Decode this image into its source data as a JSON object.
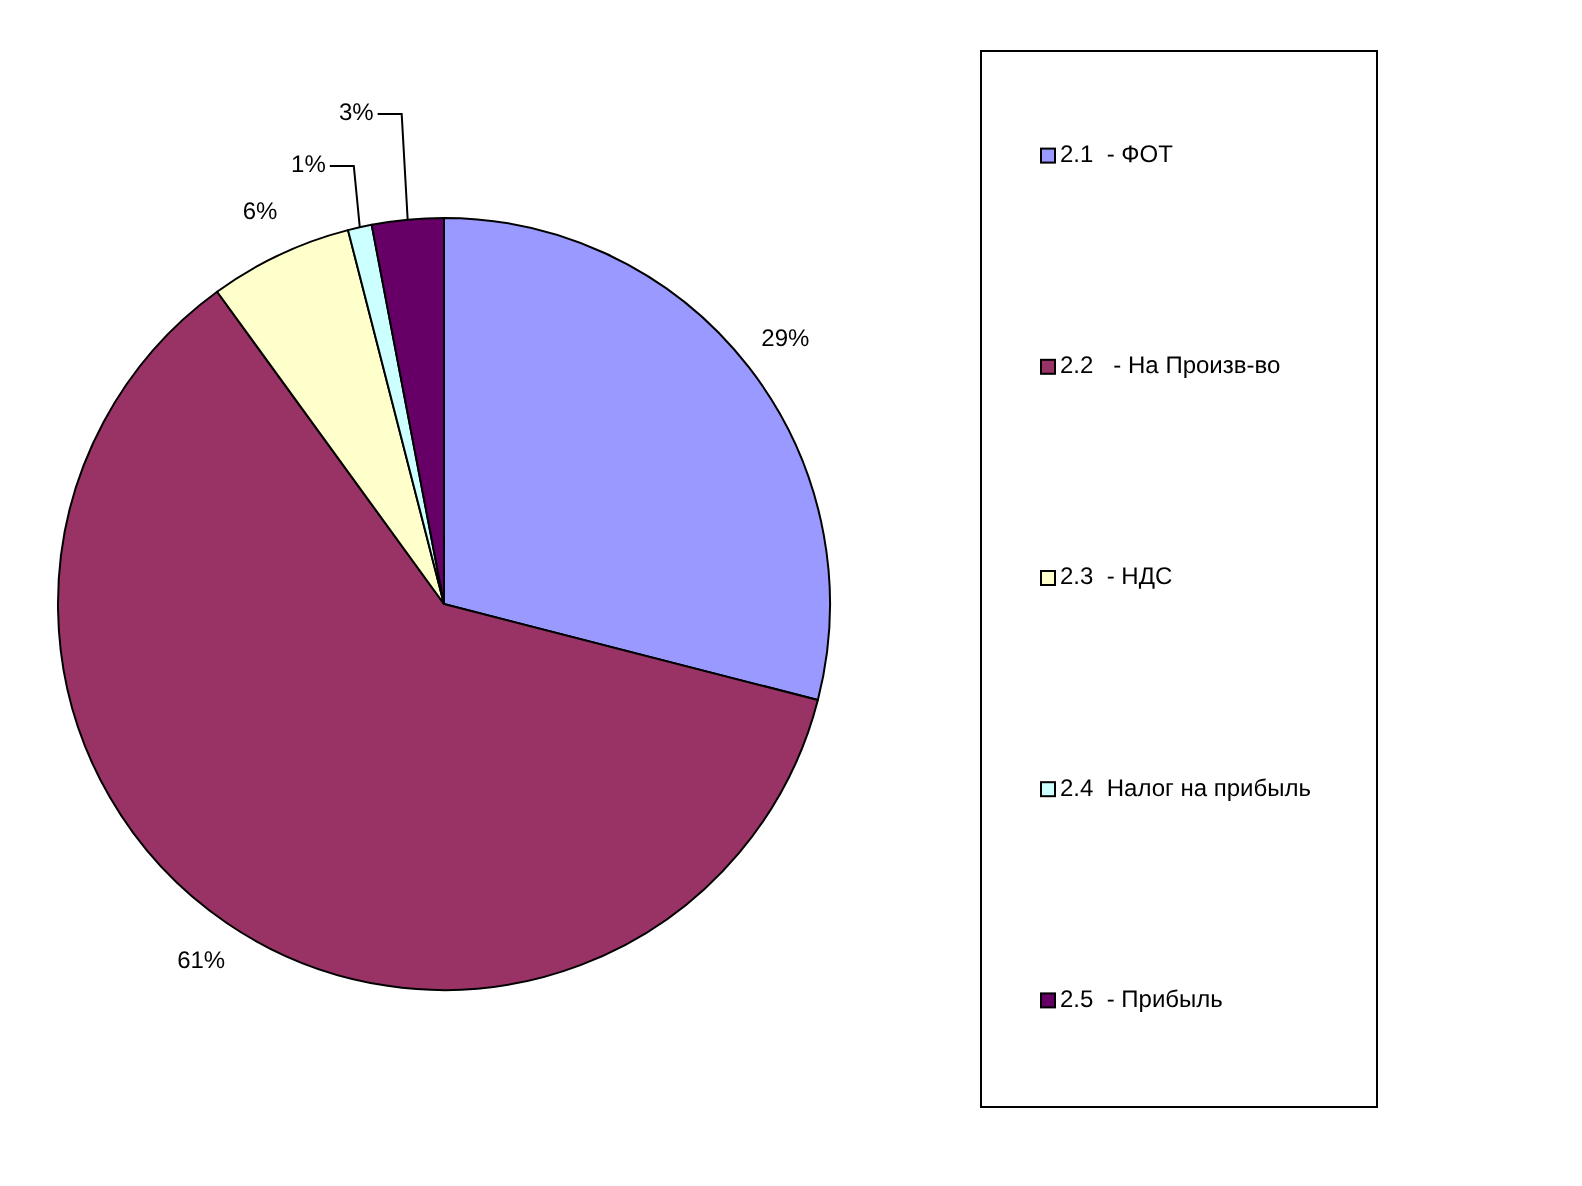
{
  "chart_data": {
    "type": "pie",
    "categories": [
      "2.1  - ФОТ",
      "2.2   - На Произв-во",
      "2.3  - НДС",
      "2.4  Налог на прибыль",
      "2.5  - Прибыль"
    ],
    "values": [
      29,
      61,
      6,
      1,
      3
    ],
    "colors": [
      "#9999ff",
      "#993366",
      "#ffffcc",
      "#ccffff",
      "#660066"
    ],
    "value_labels": [
      "29%",
      "61%",
      "6%",
      "1%",
      "3%"
    ],
    "legend": "right"
  }
}
